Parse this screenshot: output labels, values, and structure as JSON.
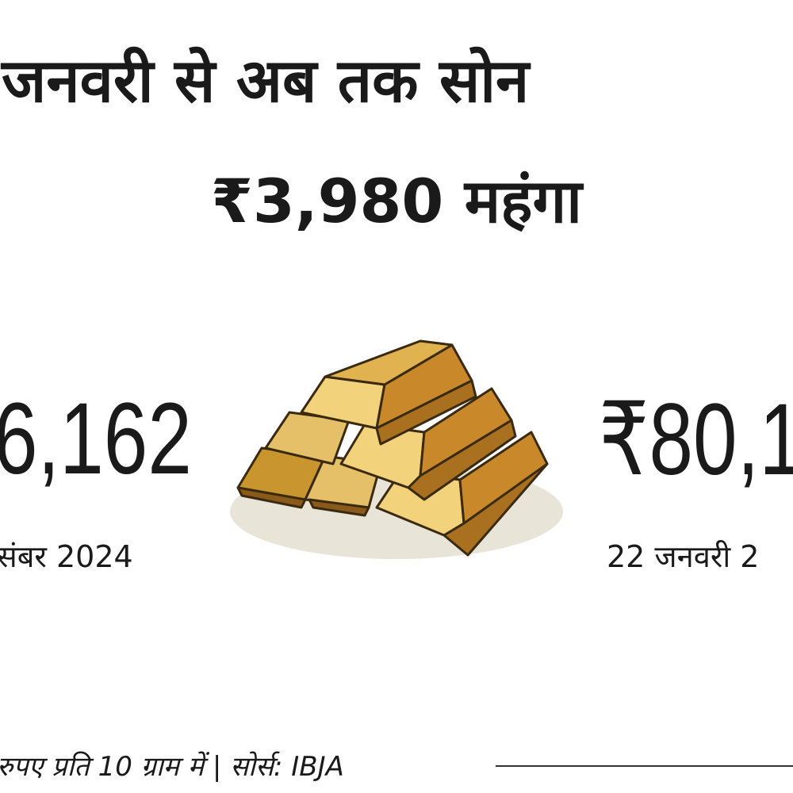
{
  "header": {
    "title_line1": "जनवरी से अब तक सोन",
    "title_line2": "₹3,980 महंगा"
  },
  "left": {
    "price": "6,162",
    "date": "संबर 2024"
  },
  "right": {
    "price": "₹80,1",
    "date": "22 जनवरी 2"
  },
  "footer": {
    "note": "रुपए प्रति 10 ग्राम में | सोर्स: IBJA"
  }
}
